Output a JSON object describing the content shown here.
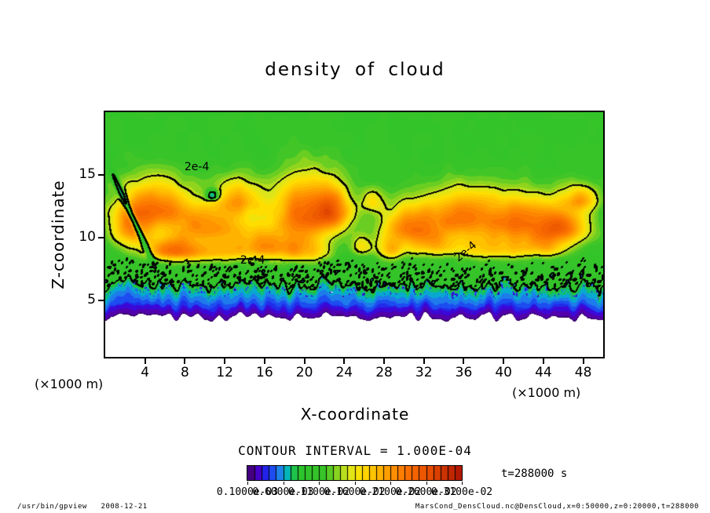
{
  "title": "density of cloud",
  "axes": {
    "x": {
      "label": "X-coordinate",
      "unit": "(×1000 m)",
      "ticks": [
        4,
        8,
        12,
        16,
        20,
        24,
        28,
        32,
        36,
        40,
        44,
        48
      ],
      "range": [
        0,
        50
      ]
    },
    "y": {
      "label": "Z-coordinate",
      "unit": "(×1000 m)",
      "ticks": [
        5,
        10,
        15
      ],
      "range": [
        0.5,
        20
      ]
    }
  },
  "contour": {
    "interval_text": "CONTOUR INTERVAL = 1.000E-04",
    "labels": [
      {
        "text": "2e-4",
        "x": 9.2,
        "z": 15.6,
        "rot": 0
      },
      {
        "text": "2e-4",
        "x": 14.8,
        "z": 8.2,
        "rot": 0
      },
      {
        "text": "2e-4",
        "x": 36.2,
        "z": 8.9,
        "rot": -40
      }
    ]
  },
  "colorbar": {
    "cells": 30,
    "labels": [
      "0.1000e-03",
      "0.6000e-03",
      "0.1100e-02",
      "0.1600e-02",
      "0.2100e-02",
      "0.2600e-02",
      "0.3100e-02"
    ]
  },
  "annotations": {
    "time": "t=288000 s"
  },
  "footer": {
    "left": "/usr/bin/gpview   2008-12-21",
    "right": "MarsCond_DensCloud.nc@DensCloud,x=0:50000,z=0:20000,t=288000"
  },
  "chart_data": {
    "type": "heatmap",
    "title": "density of cloud",
    "xlabel": "X-coordinate (×1000 m)",
    "ylabel": "Z-coordinate (×1000 m)",
    "x_range": [
      0,
      50
    ],
    "z_range": [
      0.5,
      20
    ],
    "contour_interval": 0.0001,
    "labeled_contour_value": "2e-4",
    "contour_thresholds": [
      1.38,
      0.8
    ],
    "white_below": 0.05,
    "quantize_step": 0.08,
    "noise_amp": 0.12,
    "palette": [
      [
        0.06,
        "#2a0050"
      ],
      [
        0.14,
        "#55009e"
      ],
      [
        0.22,
        "#4400d2"
      ],
      [
        0.3,
        "#2222e8"
      ],
      [
        0.4,
        "#1d4df0"
      ],
      [
        0.5,
        "#1e86ea"
      ],
      [
        0.58,
        "#00b4c8"
      ],
      [
        0.66,
        "#16c25a"
      ],
      [
        0.74,
        "#2cc32c"
      ],
      [
        1.1,
        "#38c428"
      ],
      [
        1.28,
        "#90d41e"
      ],
      [
        1.42,
        "#d8e61e"
      ],
      [
        1.58,
        "#ffe000"
      ],
      [
        1.78,
        "#ffbe00"
      ],
      [
        1.98,
        "#ff9600"
      ],
      [
        2.2,
        "#fb7100"
      ],
      [
        2.5,
        "#e84e00"
      ],
      [
        2.9,
        "#b31900"
      ]
    ],
    "profile": {
      "white_top_base": 3.3,
      "white_top_jitter": 0.8,
      "purple_band": 0.55,
      "purple_jitter": 0.5,
      "blue_band": 0.8,
      "blue_jitter": 0.9,
      "green_ramp": 0.9
    },
    "speckle": {
      "threshold": 0.72,
      "scale": 6,
      "depth": 2.2
    },
    "blobs": [
      [
        5.0,
        12.3,
        3.6,
        2.6,
        1.05,
        0
      ],
      [
        10.5,
        10.8,
        4.2,
        2.0,
        0.95,
        0
      ],
      [
        13.5,
        13.0,
        2.4,
        1.9,
        0.75,
        0
      ],
      [
        20.0,
        11.8,
        3.2,
        3.4,
        1.25,
        0
      ],
      [
        16.0,
        9.2,
        3.2,
        1.5,
        0.85,
        0
      ],
      [
        23.0,
        12.0,
        1.8,
        2.2,
        0.9,
        0
      ],
      [
        7.5,
        8.8,
        2.6,
        1.2,
        0.75,
        0
      ],
      [
        2.5,
        10.5,
        2.0,
        2.0,
        0.85,
        0
      ],
      [
        6.0,
        9.0,
        2.5,
        1.1,
        0.6,
        0
      ],
      [
        11.5,
        8.8,
        2.8,
        1.1,
        0.6,
        0
      ],
      [
        20.0,
        8.8,
        2.5,
        1.2,
        0.6,
        0
      ],
      [
        25.8,
        9.2,
        1.1,
        1.0,
        0.55,
        0
      ],
      [
        26.8,
        12.8,
        1.1,
        1.3,
        0.5,
        0
      ],
      [
        30.5,
        10.8,
        2.8,
        2.0,
        0.95,
        0
      ],
      [
        35.5,
        11.6,
        3.8,
        2.5,
        1.0,
        0
      ],
      [
        41.5,
        11.2,
        3.8,
        2.5,
        1.05,
        0
      ],
      [
        46.0,
        10.8,
        2.6,
        1.9,
        1.0,
        0
      ],
      [
        47.8,
        13.0,
        1.8,
        1.4,
        0.75,
        0
      ],
      [
        28.6,
        9.0,
        1.4,
        1.2,
        0.7,
        0
      ],
      [
        33.0,
        9.3,
        3.0,
        1.3,
        0.7,
        0
      ],
      [
        39.0,
        9.0,
        3.2,
        1.2,
        0.65,
        0
      ],
      [
        44.0,
        9.2,
        2.5,
        1.2,
        0.65,
        0
      ],
      [
        2.8,
        11.5,
        3.5,
        0.28,
        -1.2,
        -60
      ],
      [
        10.8,
        13.3,
        0.65,
        0.55,
        -0.9,
        0
      ]
    ]
  }
}
